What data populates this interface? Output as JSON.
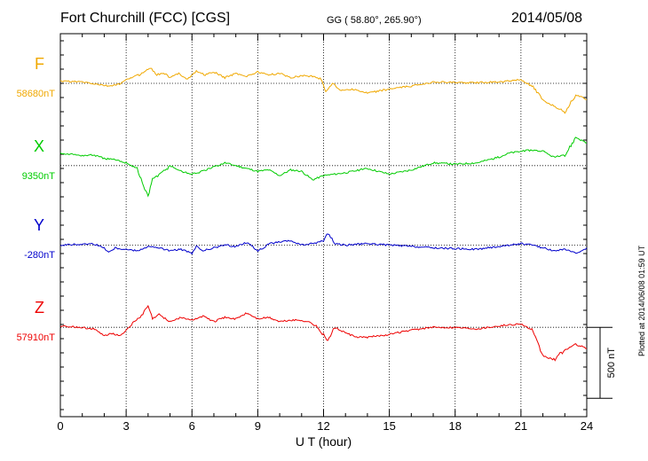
{
  "header": {
    "station": "Fort Churchill (FCC)  [CGS]",
    "coords": "GG ( 58.80°, 265.90°)",
    "date": "2014/05/08"
  },
  "footer": {
    "plotted": "Plotted at 2014/06/08 01:59 UT"
  },
  "chart_data": {
    "type": "line",
    "title": "Fort Churchill (FCC)  [CGS]",
    "xlabel": "U T (hour)",
    "ylabel": "",
    "xlim": [
      0,
      24
    ],
    "xticks": [
      "0",
      "3",
      "6",
      "9",
      "12",
      "15",
      "18",
      "21",
      "24"
    ],
    "xtick_values": [
      0,
      3,
      6,
      9,
      12,
      15,
      18,
      21,
      24
    ],
    "ylim": [
      -2350,
      350
    ],
    "scale_bar": {
      "label": "500 nT",
      "value": 500
    },
    "series": [
      {
        "name": "F",
        "label": "F",
        "baseline_label": "58680nT",
        "color": "#f0a800",
        "offset": 0,
        "x": [
          0,
          1,
          1.8,
          2.2,
          2.7,
          3.2,
          3.6,
          3.9,
          4.1,
          4.4,
          4.7,
          5.0,
          5.4,
          5.8,
          6.2,
          6.6,
          7.0,
          7.5,
          8.0,
          8.5,
          9.0,
          9.5,
          10.0,
          10.5,
          11.0,
          11.5,
          11.9,
          12.1,
          12.4,
          12.8,
          13.3,
          14.0,
          15.0,
          16.0,
          17.0,
          18.0,
          19.0,
          20.0,
          21.0,
          21.5,
          22.0,
          22.5,
          23.0,
          23.5,
          24.0
        ],
        "values": [
          15,
          10,
          -10,
          -20,
          -5,
          40,
          60,
          90,
          110,
          60,
          75,
          40,
          70,
          30,
          85,
          60,
          80,
          40,
          70,
          50,
          80,
          60,
          70,
          40,
          55,
          50,
          30,
          -60,
          0,
          -50,
          -40,
          -70,
          -40,
          -20,
          10,
          5,
          5,
          10,
          25,
          -20,
          -120,
          -160,
          -200,
          -80,
          -115
        ]
      },
      {
        "name": "X",
        "label": "X",
        "baseline_label": "9350nT",
        "color": "#00cc00",
        "offset": -580,
        "x": [
          0,
          0.5,
          1.0,
          1.5,
          2.0,
          2.5,
          3.0,
          3.5,
          3.8,
          4.0,
          4.2,
          4.5,
          5.0,
          5.5,
          6.0,
          6.5,
          7.0,
          7.5,
          8.0,
          8.5,
          9.0,
          9.5,
          10.0,
          10.5,
          11.0,
          11.5,
          12.0,
          12.5,
          13.0,
          14.0,
          15.0,
          16.0,
          17.0,
          18.0,
          19.0,
          20.0,
          20.5,
          21.0,
          21.5,
          22.0,
          22.5,
          23.0,
          23.5,
          24.0
        ],
        "values": [
          90,
          80,
          70,
          75,
          50,
          40,
          20,
          -20,
          -150,
          -220,
          -90,
          -70,
          0,
          -40,
          -60,
          -40,
          -10,
          20,
          0,
          -20,
          -40,
          -30,
          -70,
          -30,
          -40,
          -100,
          -70,
          -60,
          -50,
          -20,
          -60,
          -30,
          20,
          10,
          20,
          60,
          90,
          100,
          110,
          100,
          60,
          70,
          200,
          160
        ]
      },
      {
        "name": "Y",
        "label": "Y",
        "baseline_label": "-280nT",
        "color": "#0000cc",
        "offset": -1140,
        "x": [
          0,
          0.8,
          1.5,
          2.0,
          2.2,
          2.5,
          3.0,
          3.5,
          4.0,
          4.5,
          5.0,
          5.5,
          6.0,
          6.2,
          6.5,
          7.0,
          7.5,
          8.0,
          8.5,
          9.0,
          9.3,
          9.5,
          10.0,
          10.5,
          11.0,
          11.5,
          12.0,
          12.2,
          12.5,
          13.0,
          14.0,
          15.0,
          16.0,
          17.0,
          18.0,
          19.0,
          20.0,
          21.0,
          21.5,
          22.0,
          22.5,
          23.0,
          23.5,
          24.0
        ],
        "values": [
          0,
          5,
          10,
          -20,
          -50,
          -20,
          -30,
          -40,
          -10,
          -20,
          -40,
          -30,
          -60,
          -10,
          -40,
          -20,
          0,
          -10,
          20,
          -40,
          -20,
          10,
          20,
          30,
          0,
          10,
          30,
          90,
          10,
          0,
          10,
          0,
          -10,
          -20,
          -25,
          -30,
          -10,
          10,
          0,
          -20,
          -40,
          -30,
          -60,
          -20
        ]
      },
      {
        "name": "Z",
        "label": "Z",
        "baseline_label": "57910nT",
        "color": "#ee0000",
        "offset": -1720,
        "x": [
          0,
          0.8,
          1.5,
          2.0,
          2.3,
          2.7,
          3.0,
          3.3,
          3.7,
          4.0,
          4.2,
          4.5,
          5.0,
          5.5,
          6.0,
          6.5,
          7.0,
          7.5,
          8.0,
          8.5,
          9.0,
          9.5,
          10.0,
          10.5,
          11.0,
          11.5,
          12.0,
          12.2,
          12.5,
          13.0,
          13.5,
          14.0,
          15.0,
          16.0,
          17.0,
          18.0,
          19.0,
          20.0,
          21.0,
          21.5,
          22.0,
          22.5,
          23.0,
          23.5,
          24.0
        ],
        "values": [
          10,
          0,
          -10,
          -60,
          -40,
          -60,
          -20,
          30,
          80,
          150,
          60,
          90,
          40,
          70,
          50,
          80,
          40,
          70,
          60,
          100,
          60,
          70,
          40,
          50,
          50,
          30,
          -50,
          -100,
          0,
          -40,
          -70,
          -70,
          -50,
          -20,
          0,
          0,
          -10,
          10,
          25,
          -20,
          -200,
          -230,
          -160,
          -120,
          -150
        ]
      }
    ]
  }
}
